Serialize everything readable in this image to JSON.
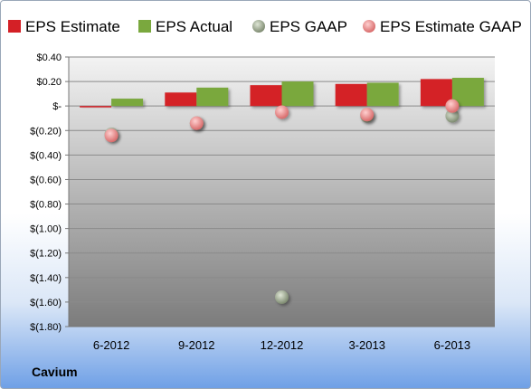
{
  "company": "Cavium",
  "colors": {
    "eps_estimate": "#d42026",
    "eps_actual": "#7aa83e",
    "eps_gaap": "#8f9c82",
    "eps_estimate_gaap": "#e67d7d"
  },
  "chart_data": {
    "type": "bar",
    "categories": [
      "6-2012",
      "9-2012",
      "12-2012",
      "3-2013",
      "6-2013"
    ],
    "series": [
      {
        "name": "EPS Estimate",
        "kind": "bar",
        "values": [
          -0.01,
          0.11,
          0.17,
          0.18,
          0.22
        ]
      },
      {
        "name": "EPS Actual",
        "kind": "bar",
        "values": [
          0.06,
          0.15,
          0.2,
          0.19,
          0.23
        ]
      },
      {
        "name": "EPS GAAP",
        "kind": "point",
        "values": [
          -0.23,
          -0.14,
          -1.56,
          -0.08,
          -0.08
        ]
      },
      {
        "name": "EPS Estimate GAAP",
        "kind": "point",
        "values": [
          -0.24,
          -0.14,
          -0.05,
          -0.07,
          0.0
        ]
      }
    ],
    "ylim": [
      -1.8,
      0.4
    ],
    "yticks": [
      "$0.40",
      "$0.20",
      "$-",
      "$(0.20)",
      "$(0.40)",
      "$(0.60)",
      "$(0.80)",
      "$(1.00)",
      "$(1.20)",
      "$(1.40)",
      "$(1.60)",
      "$(1.80)"
    ],
    "legend": "top",
    "grid": true
  }
}
